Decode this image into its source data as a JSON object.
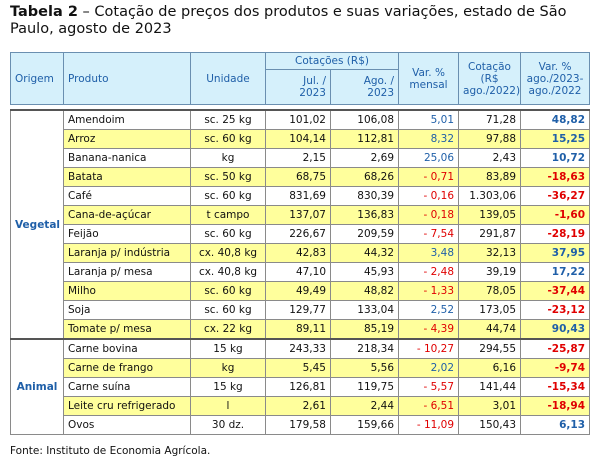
{
  "title": {
    "label": "Tabela 2",
    "text": "– Cotação de preços dos produtos e suas variações, estado de São Paulo, agosto de 2023"
  },
  "header": {
    "origem": "Origem",
    "produto": "Produto",
    "unidade": "Unidade",
    "cotacoes": "Cotações (R$)",
    "jul": "Jul. /\n2023",
    "ago": "Ago. /\n2023",
    "var_mensal": "Var. %\nmensal",
    "cotacao_2022": "Cotação\n(R$\nago./2022)",
    "var_anual": "Var. %\nago./2023-\nago./2022"
  },
  "groups": [
    {
      "name": "Vegetal",
      "rows": [
        [
          "Amendoim",
          "sc. 25 kg",
          "101,02",
          "106,08",
          "5,01",
          "71,28",
          "48,82"
        ],
        [
          "Arroz",
          "sc. 60 kg",
          "104,14",
          "112,81",
          "8,32",
          "97,88",
          "15,25"
        ],
        [
          "Banana-nanica",
          "kg",
          "2,15",
          "2,69",
          "25,06",
          "2,43",
          "10,72"
        ],
        [
          "Batata",
          "sc. 50 kg",
          "68,75",
          "68,26",
          "- 0,71",
          "83,89",
          "-18,63"
        ],
        [
          "Café",
          "sc. 60 kg",
          "831,69",
          "830,39",
          "- 0,16",
          "1.303,06",
          "-36,27"
        ],
        [
          "Cana-de-açúcar",
          "t campo",
          "137,07",
          "136,83",
          "- 0,18",
          "139,05",
          "-1,60"
        ],
        [
          "Feijão",
          "sc. 60 kg",
          "226,67",
          "209,59",
          "- 7,54",
          "291,87",
          "-28,19"
        ],
        [
          "Laranja p/ indústria",
          "cx. 40,8 kg",
          "42,83",
          "44,32",
          "3,48",
          "32,13",
          "37,95"
        ],
        [
          "Laranja p/ mesa",
          "cx. 40,8 kg",
          "47,10",
          "45,93",
          "- 2,48",
          "39,19",
          "17,22"
        ],
        [
          "Milho",
          "sc. 60 kg",
          "49,49",
          "48,82",
          "- 1,33",
          "78,05",
          "-37,44"
        ],
        [
          "Soja",
          "sc. 60 kg",
          "129,77",
          "133,04",
          "2,52",
          "173,05",
          "-23,12"
        ],
        [
          "Tomate p/ mesa",
          "cx. 22 kg",
          "89,11",
          "85,19",
          "- 4,39",
          "44,74",
          "90,43"
        ]
      ]
    },
    {
      "name": "Animal",
      "rows": [
        [
          "Carne bovina",
          "15 kg",
          "243,33",
          "218,34",
          "- 10,27",
          "294,55",
          "-25,87"
        ],
        [
          "Carne de frango",
          "kg",
          "5,45",
          "5,56",
          "2,02",
          "6,16",
          "-9,74"
        ],
        [
          "Carne suína",
          "15 kg",
          "126,81",
          "119,75",
          "- 5,57",
          "141,44",
          "-15,34"
        ],
        [
          "Leite cru refrigerado",
          "l",
          "2,61",
          "2,44",
          "- 6,51",
          "3,01",
          "-18,94"
        ],
        [
          "Ovos",
          "30 dz.",
          "179,58",
          "159,66",
          "- 11,09",
          "150,43",
          "6,13"
        ]
      ]
    }
  ],
  "source": "Fonte: Instituto de Economia Agrícola."
}
